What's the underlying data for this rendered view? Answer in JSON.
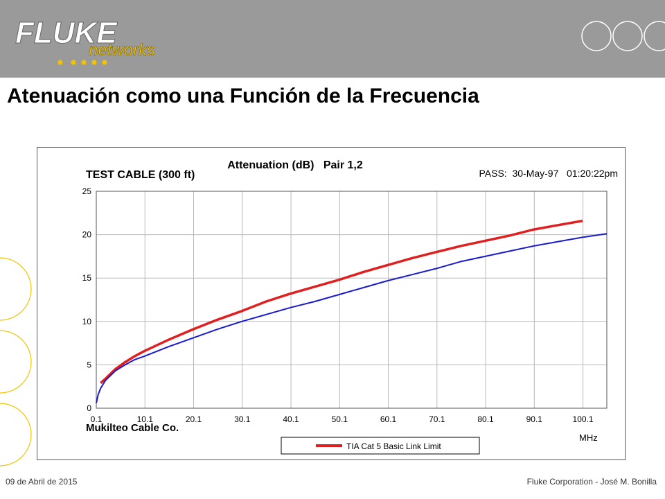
{
  "slide": {
    "title": "Atenuación como una Función de la Frecuencia",
    "footer_left": "09 de Abril de 2015",
    "footer_right": "Fluke Corporation - José M. Bonilla"
  },
  "logo": {
    "brand": "FLUKE",
    "sub": "networks",
    "brand_color": "#ffffff",
    "sub_color": "#f2c400"
  },
  "chart_data": {
    "type": "line",
    "title": "Attenuation (dB)   Pair 1,2",
    "top_left_label": "TEST CABLE (300 ft)",
    "status": "PASS:  30-May-97   01:20:22pm",
    "bottom_left_label": "Mukilteo Cable Co.",
    "xlabel": "MHz",
    "ylabel": "",
    "xlim": [
      0.1,
      105
    ],
    "ylim": [
      0,
      25
    ],
    "xticks": [
      0.1,
      10.1,
      20.1,
      30.1,
      40.1,
      50.1,
      60.1,
      70.1,
      80.1,
      90.1,
      100.1
    ],
    "xtick_labels": [
      "0.1",
      "10.1",
      "20.1",
      "30.1",
      "40.1",
      "50.1",
      "60.1",
      "70.1",
      "80.1",
      "90.1",
      "100.1"
    ],
    "yticks": [
      0,
      5,
      10,
      15,
      20,
      25
    ],
    "ytick_labels": [
      "0",
      "5",
      "10",
      "15",
      "20",
      "25"
    ],
    "grid": true,
    "legend": {
      "position": "bottom-center",
      "entries": [
        "TIA Cat 5 Basic Link Limit"
      ]
    },
    "series": [
      {
        "name": "TIA Cat 5 Basic Link Limit",
        "color": "#e02020",
        "x": [
          1,
          2,
          4,
          6,
          8,
          10,
          15,
          20,
          25,
          30,
          35,
          40,
          45,
          50,
          55,
          60,
          65,
          70,
          75,
          80,
          85,
          90,
          95,
          100
        ],
        "y": [
          2.9,
          3.4,
          4.5,
          5.3,
          6.0,
          6.6,
          7.9,
          9.1,
          10.2,
          11.2,
          12.3,
          13.2,
          14.0,
          14.8,
          15.7,
          16.5,
          17.3,
          18.0,
          18.7,
          19.3,
          19.9,
          20.6,
          21.1,
          21.6
        ]
      },
      {
        "color": "#1a1acc",
        "x": [
          0.1,
          0.5,
          1,
          2,
          4,
          6,
          8,
          10,
          15,
          20,
          25,
          30,
          35,
          40,
          45,
          50,
          55,
          60,
          65,
          70,
          75,
          80,
          85,
          90,
          95,
          100,
          105
        ],
        "y": [
          0.6,
          1.6,
          2.3,
          3.2,
          4.3,
          5.0,
          5.6,
          6.0,
          7.1,
          8.1,
          9.1,
          10.0,
          10.8,
          11.6,
          12.3,
          13.1,
          13.9,
          14.7,
          15.4,
          16.1,
          16.9,
          17.5,
          18.1,
          18.7,
          19.2,
          19.7,
          20.1
        ]
      }
    ]
  }
}
